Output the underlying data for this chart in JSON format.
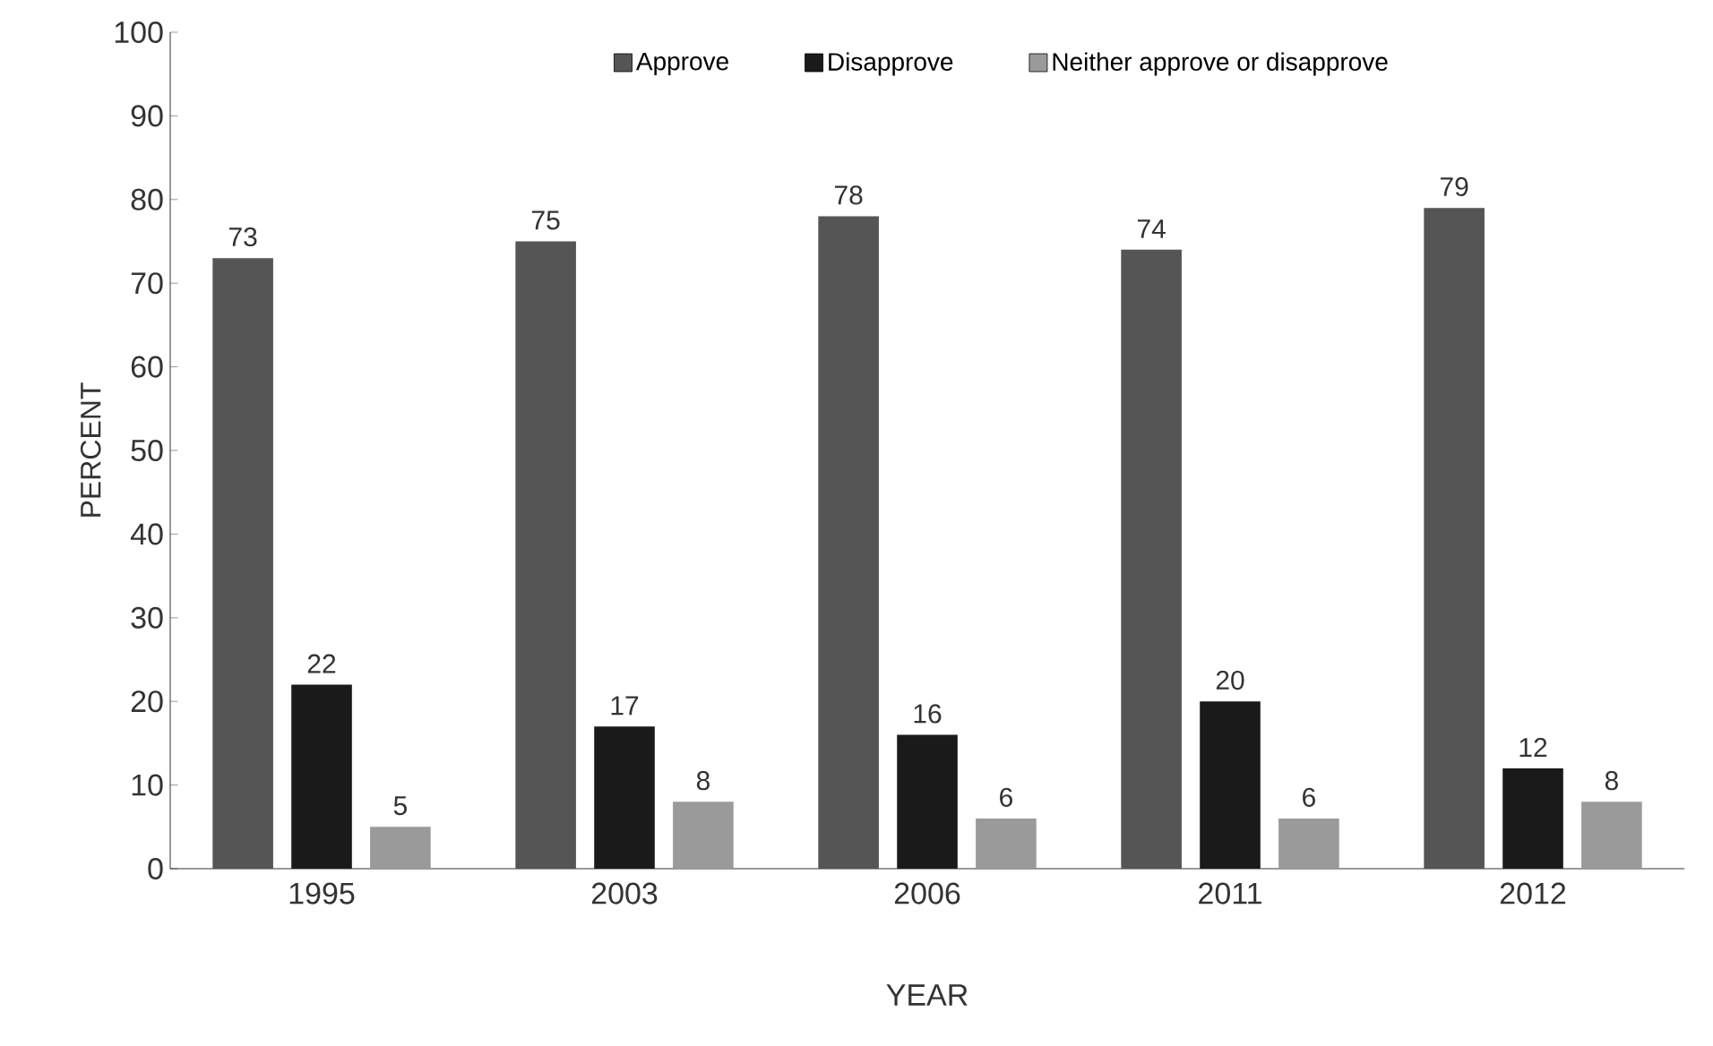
{
  "chart_data": {
    "type": "bar",
    "xlabel": "YEAR",
    "ylabel": "PERCENT",
    "categories": [
      "1995",
      "2003",
      "2006",
      "2011",
      "2012"
    ],
    "series": [
      {
        "name": "Approve",
        "color": "#555555",
        "values": [
          73,
          75,
          78,
          74,
          79
        ]
      },
      {
        "name": "Disapprove",
        "color": "#1a1a1a",
        "values": [
          22,
          17,
          16,
          20,
          12
        ]
      },
      {
        "name": "Neither approve or disapprove",
        "color": "#9a9a9a",
        "values": [
          5,
          8,
          6,
          6,
          8
        ]
      }
    ],
    "ylim": [
      0,
      100
    ],
    "yticks": [
      0,
      10,
      20,
      30,
      40,
      50,
      60,
      70,
      80,
      90,
      100
    ],
    "data_labels": true,
    "legend": "top",
    "grid": false
  }
}
